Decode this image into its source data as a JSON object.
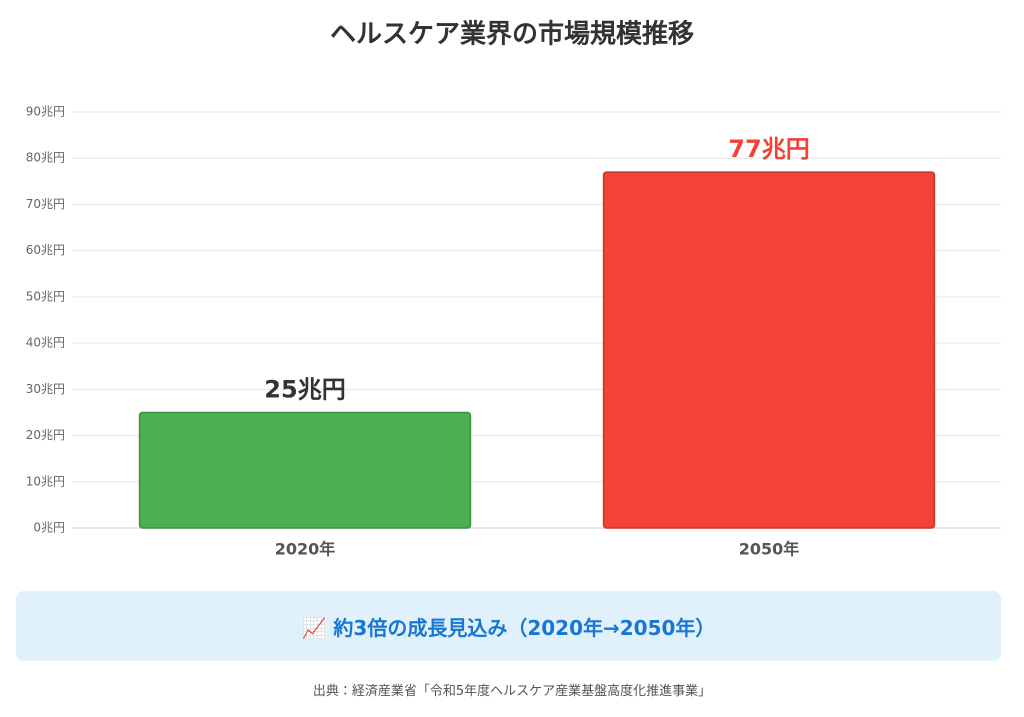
{
  "chart_data": {
    "type": "bar",
    "title": "ヘルスケア業界の市場規模推移",
    "categories": [
      "2020年",
      "2050年"
    ],
    "values": [
      25,
      77
    ],
    "value_labels": [
      "25兆円",
      "77兆円"
    ],
    "colors": [
      "#4caf50",
      "#f44336"
    ],
    "value_label_colors": [
      "#333333",
      "#f44336"
    ],
    "ylim": [
      0,
      90
    ],
    "yticks": [
      {
        "value": 0,
        "label": "0兆円"
      },
      {
        "value": 10,
        "label": "10兆円"
      },
      {
        "value": 20,
        "label": "20兆円"
      },
      {
        "value": 30,
        "label": "30兆円"
      },
      {
        "value": 40,
        "label": "40兆円"
      },
      {
        "value": 50,
        "label": "50兆円"
      },
      {
        "value": 60,
        "label": "60兆円"
      },
      {
        "value": 70,
        "label": "70兆円"
      },
      {
        "value": 80,
        "label": "80兆円"
      },
      {
        "value": 90,
        "label": "90兆円"
      }
    ],
    "grid": true,
    "annotation": "📈 約3倍の成長見込み（2020年→2050年）",
    "source": "出典：経済産業省「令和5年度ヘルスケア産業基盤高度化推進事業」"
  }
}
